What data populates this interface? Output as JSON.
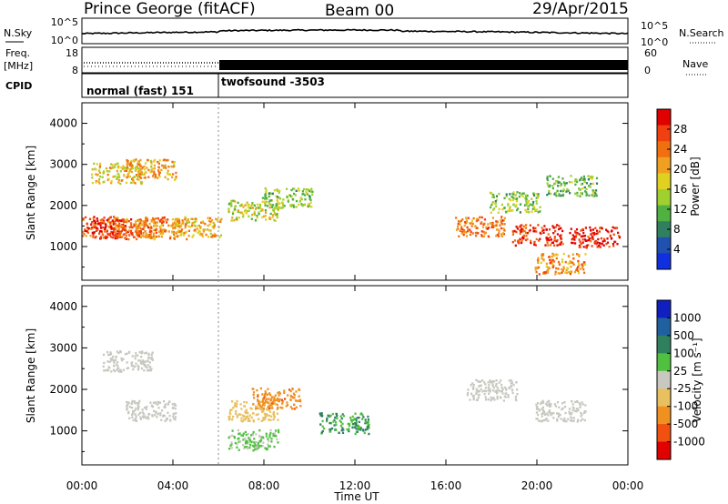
{
  "header": {
    "station": "Prince George (fitACF)",
    "beam": "Beam 00",
    "date": "29/Apr/2015"
  },
  "top_panels": {
    "nsky_label": "N.Sky",
    "nsky_ticks": [
      "10^5",
      "10^0"
    ],
    "nsearch_label": "N.Search",
    "freq_label_line1": "Freq.",
    "freq_label_line2": "[MHz]",
    "freq_ticks": [
      "18",
      "8"
    ],
    "nave_label": "Nave",
    "nave_ticks": [
      "60",
      "0"
    ],
    "cpid_label": "CPID",
    "cpid_segments": [
      {
        "label": "normal (fast) 151",
        "start_hour": 0,
        "end_hour": 6
      },
      {
        "label": "twofsound -3503",
        "start_hour": 6,
        "end_hour": 24
      }
    ]
  },
  "panels": {
    "ylabel": "Slant Range [km]",
    "yticks": [
      "4000",
      "3000",
      "2000",
      "1000"
    ],
    "xlabel": "Time UT",
    "xticks": [
      "00:00",
      "04:00",
      "08:00",
      "12:00",
      "16:00",
      "20:00",
      "00:00"
    ]
  },
  "colorbars": {
    "power": {
      "label": "Power [dB]",
      "tick_labels": [
        "28",
        "24",
        "20",
        "16",
        "12",
        "8",
        "4"
      ],
      "colors": [
        "#e00000",
        "#f04010",
        "#f07010",
        "#f0a020",
        "#e0d020",
        "#a0d030",
        "#50b040",
        "#308060",
        "#2050b0",
        "#1030e0"
      ]
    },
    "velocity": {
      "label": "Velocity [m s⁻¹]",
      "tick_labels": [
        "1000",
        "500",
        "100",
        "25",
        "-25",
        "-100",
        "-500",
        "-1000"
      ],
      "colors": [
        "#1020c0",
        "#2060a0",
        "#308060",
        "#50c040",
        "#c8c8c0",
        "#e8c060",
        "#f09020",
        "#f05010",
        "#e00000"
      ]
    }
  },
  "chart_data": {
    "type": "heatmap",
    "title": "Prince George (fitACF)  Beam 00  29/Apr/2015",
    "xlabel": "Time UT",
    "ylabel": "Slant Range [km]",
    "xlim_hours": [
      0,
      24
    ],
    "ylim_km": [
      180,
      4500
    ],
    "power_range_db": [
      0,
      32
    ],
    "velocity_range_ms": [
      -1200,
      1200
    ],
    "series": [
      {
        "name": "Power [dB]",
        "values": [
          {
            "t": 0.5,
            "km": 1500,
            "db": 26
          },
          {
            "t": 1.5,
            "km": 1450,
            "db": 28
          },
          {
            "t": 2.5,
            "km": 1500,
            "db": 24
          },
          {
            "t": 3.5,
            "km": 1450,
            "db": 22
          },
          {
            "t": 5.0,
            "km": 1500,
            "db": 20
          },
          {
            "t": 1.5,
            "km": 2800,
            "db": 18
          },
          {
            "t": 3.0,
            "km": 2900,
            "db": 20
          },
          {
            "t": 7.5,
            "km": 1900,
            "db": 16
          },
          {
            "t": 9.0,
            "km": 2200,
            "db": 14
          },
          {
            "t": 17.5,
            "km": 1500,
            "db": 24
          },
          {
            "t": 20.0,
            "km": 1300,
            "db": 28
          },
          {
            "t": 22.5,
            "km": 1250,
            "db": 30
          },
          {
            "t": 19.0,
            "km": 2100,
            "db": 14
          },
          {
            "t": 21.5,
            "km": 2500,
            "db": 12
          },
          {
            "t": 21.0,
            "km": 600,
            "db": 22
          }
        ]
      },
      {
        "name": "Velocity [m s⁻¹]",
        "values": [
          {
            "t": 2.0,
            "km": 2700,
            "v": -40
          },
          {
            "t": 3.0,
            "km": 1500,
            "v": 0
          },
          {
            "t": 7.5,
            "km": 1500,
            "v": -300
          },
          {
            "t": 8.5,
            "km": 1800,
            "v": -600
          },
          {
            "t": 7.5,
            "km": 800,
            "v": 150
          },
          {
            "t": 11.5,
            "km": 1200,
            "v": 400
          },
          {
            "t": 18.0,
            "km": 2000,
            "v": 0
          },
          {
            "t": 21.0,
            "km": 1500,
            "v": 0
          }
        ]
      }
    ]
  }
}
